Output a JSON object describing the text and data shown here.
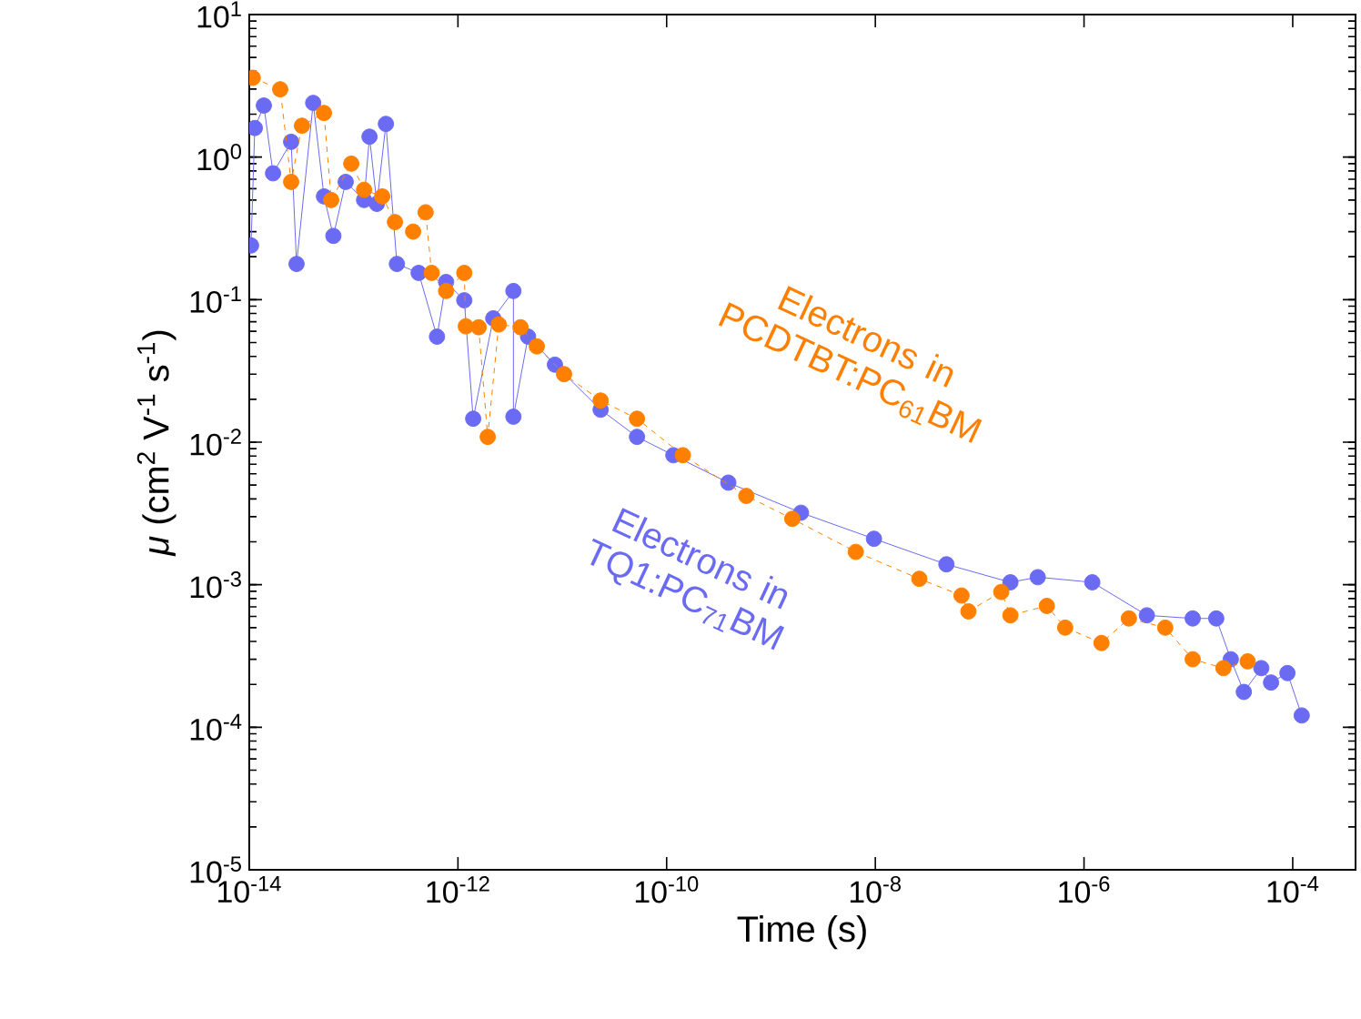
{
  "chart_data": {
    "type": "line",
    "xlabel": "Time (s)",
    "ylabel": "*μ* (cm$^{2}$ V$^{-1}$ s$^{-1}$)",
    "log": "xy",
    "marker": "circle",
    "xlim": [
      1e-14,
      0.0004
    ],
    "ylim": [
      1e-05,
      10
    ],
    "xticks": [
      {
        "value": 1e-14,
        "label": "10$^{-14}$"
      },
      {
        "value": 1e-12,
        "label": "10$^{-12}$"
      },
      {
        "value": 1e-10,
        "label": "10$^{-10}$"
      },
      {
        "value": 1e-08,
        "label": "10$^{-8}$"
      },
      {
        "value": 1e-06,
        "label": "10$^{-6}$"
      },
      {
        "value": 0.0001,
        "label": "10$^{-4}$"
      }
    ],
    "yticks": [
      {
        "value": 1e-05,
        "label": "10$^{-5}$"
      },
      {
        "value": 0.0001,
        "label": "10$^{-4}$"
      },
      {
        "value": 0.001,
        "label": "10$^{-3}$"
      },
      {
        "value": 0.01,
        "label": "10$^{-2}$"
      },
      {
        "value": 0.1,
        "label": "10$^{-1}$"
      },
      {
        "value": 1,
        "label": "10$^{0}$"
      },
      {
        "value": 10,
        "label": "10$^{1}$"
      }
    ],
    "series": [
      {
        "name": "Electrons in TQ1:PC$_{71}$BM",
        "color": "#6a6af2",
        "line_style": "solid",
        "x": [
          1.04e-14,
          1.13e-14,
          1.38e-14,
          1.69e-14,
          2.52e-14,
          2.84e-14,
          4.1e-14,
          5.2e-14,
          6.4e-14,
          8.4e-14,
          1.26e-13,
          1.42e-13,
          1.67e-13,
          2.04e-13,
          2.6e-13,
          4.2e-13,
          6.3e-13,
          7.7e-13,
          1.15e-12,
          1.4e-12,
          2.18e-12,
          3.4e-12,
          3.4e-12,
          4.7e-12,
          8.5e-12,
          2.33e-11,
          5.2e-11,
          1.16e-10,
          3.9e-10,
          1.94e-09,
          9.7e-09,
          4.8e-08,
          1.97e-07,
          3.6e-07,
          1.2e-06,
          4e-06,
          1.1e-05,
          1.85e-05,
          2.55e-05,
          3.4e-05,
          5e-05,
          6.2e-05,
          8.9e-05,
          0.000122
        ],
        "values": [
          0.24,
          1.6,
          2.3,
          0.77,
          1.28,
          0.178,
          2.4,
          0.53,
          0.28,
          0.67,
          0.5,
          1.39,
          0.47,
          1.71,
          0.178,
          0.154,
          0.055,
          0.133,
          0.099,
          0.0146,
          0.074,
          0.115,
          0.0151,
          0.055,
          0.035,
          0.0169,
          0.0109,
          0.0081,
          0.0052,
          0.0032,
          0.0021,
          0.00139,
          0.00104,
          0.00113,
          0.00104,
          0.00061,
          0.00058,
          0.00058,
          0.0003,
          0.000177,
          0.00026,
          0.000206,
          0.00024,
          0.000121
        ]
      },
      {
        "name": "Electrons in PCDTBT:PC$_{61}$BM",
        "color": "#ff8000",
        "line_style": "dashed",
        "x": [
          1.08e-14,
          1.98e-14,
          2.52e-14,
          3.2e-14,
          5.2e-14,
          6.1e-14,
          9.5e-14,
          1.26e-13,
          1.88e-13,
          2.49e-13,
          3.72e-13,
          4.9e-13,
          5.6e-13,
          7.7e-13,
          1.15e-12,
          1.19e-12,
          1.58e-12,
          1.93e-12,
          2.46e-12,
          3.98e-12,
          5.7e-12,
          1.04e-11,
          2.33e-11,
          5.2e-11,
          1.43e-10,
          5.8e-10,
          1.6e-09,
          6.5e-09,
          2.64e-08,
          6.7e-08,
          7.8e-08,
          1.61e-07,
          1.97e-07,
          4.4e-07,
          6.6e-07,
          1.47e-06,
          2.69e-06,
          6e-06,
          1.1e-05,
          2.17e-05,
          3.7e-05
        ],
        "values": [
          3.6,
          2.99,
          0.67,
          1.66,
          2.04,
          0.5,
          0.9,
          0.59,
          0.53,
          0.35,
          0.3,
          0.41,
          0.154,
          0.115,
          0.154,
          0.065,
          0.064,
          0.0109,
          0.067,
          0.064,
          0.047,
          0.03,
          0.0196,
          0.0146,
          0.0081,
          0.0042,
          0.0029,
          0.0017,
          0.0011,
          0.00084,
          0.00065,
          0.00089,
          0.00061,
          0.00071,
          0.0005,
          0.00039,
          0.00058,
          0.0005,
          0.0003,
          0.00026,
          0.00029
        ]
      }
    ]
  }
}
